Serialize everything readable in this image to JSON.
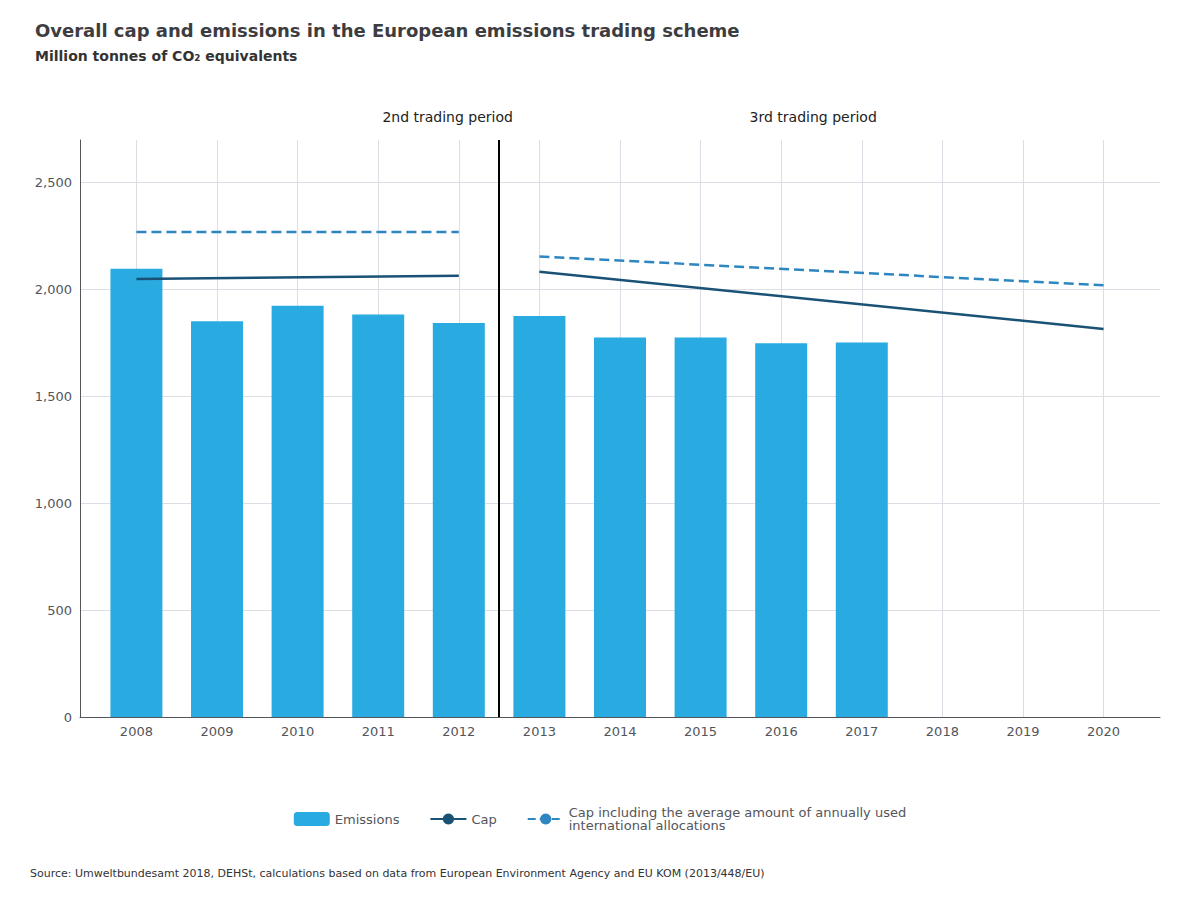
{
  "chart_data": {
    "type": "bar",
    "title": "Overall cap and emissions in the European emissions trading scheme",
    "subtitle": "Million tonnes of CO₂ equivalents",
    "source": "Source: Umweltbundesamt 2018, DEHSt, calculations based on data from European Environment Agency and EU KOM (2013/448/EU)",
    "annotations": [
      "2nd trading period",
      "3rd trading period"
    ],
    "vline": 2012.5,
    "xlim": [
      2007.3,
      2020.7
    ],
    "xticks": [
      2008,
      2009,
      2010,
      2011,
      2012,
      2013,
      2014,
      2015,
      2016,
      2017,
      2018,
      2019,
      2020
    ],
    "ylim": [
      0,
      2700
    ],
    "yticks": [
      0,
      500,
      {
        "value": 1000,
        "label": "1,000"
      },
      {
        "value": 1500,
        "label": "1,500"
      },
      {
        "value": 2000,
        "label": "2,000"
      },
      {
        "value": 2500,
        "label": "2,500"
      }
    ],
    "grid": true,
    "legend": "bottom",
    "series": [
      {
        "name": "Emissions",
        "type": "bar",
        "color": "#29ABE2",
        "x": [
          2008,
          2009,
          2010,
          2011,
          2012,
          2013,
          2014,
          2015,
          2016,
          2017
        ],
        "values": [
          2098,
          1852,
          1924,
          1883,
          1844,
          1876,
          1776,
          1776,
          1749,
          1752
        ]
      },
      {
        "name": "Cap",
        "type": "line",
        "color": "#1A5276",
        "line_style": "solid",
        "x": [
          2008,
          2012
        ],
        "values": [
          2049,
          2065
        ]
      },
      {
        "name": "Cap",
        "type": "line",
        "color": "#1A5276",
        "line_style": "solid",
        "x": [
          2013,
          2020
        ],
        "values": [
          2084,
          1816
        ]
      },
      {
        "name": "Cap including the average amount of annually used\ninternational allocations",
        "type": "line",
        "color": "#2E86C1",
        "line_style": "dashed",
        "x": [
          2008,
          2012
        ],
        "values": [
          2270,
          2270
        ]
      },
      {
        "name": "Cap including the average amount of annually used\ninternational allocations",
        "type": "line",
        "color": "#2E86C1",
        "line_style": "dashed",
        "x": [
          2013,
          2020
        ],
        "values": [
          2155,
          2020
        ]
      }
    ]
  }
}
